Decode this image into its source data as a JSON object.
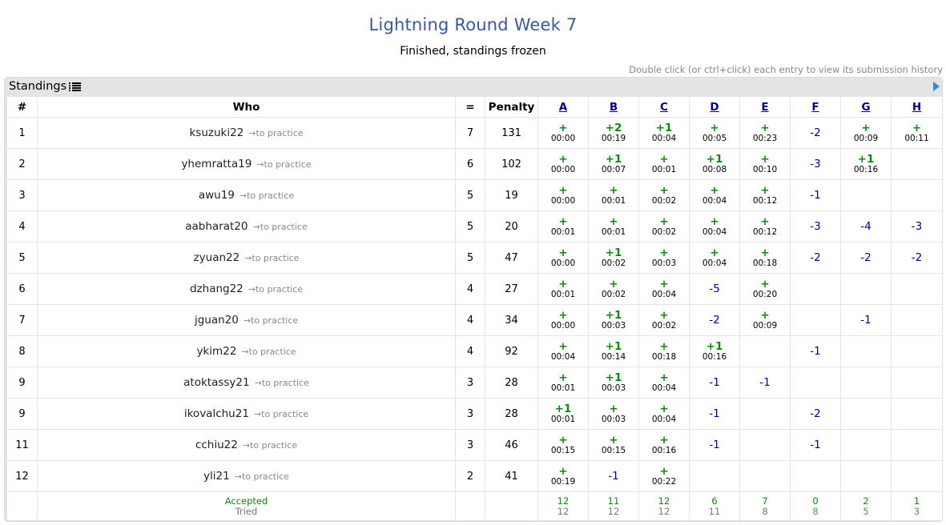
{
  "contest": {
    "title": "Lightning Round Week 7",
    "status": "Finished, standings frozen",
    "hint": "Double click (or ctrl+click) each entry to view its submission history"
  },
  "panel": {
    "title": "Standings"
  },
  "colors": {
    "accepted": "#0a8a0a",
    "rejected": "#00008b",
    "title": "#3b5998",
    "practice": "#888888"
  },
  "columns": {
    "rank": "#",
    "who": "Who",
    "solved": "=",
    "penalty": "Penalty",
    "problems": [
      "A",
      "B",
      "C",
      "D",
      "E",
      "F",
      "G",
      "H"
    ]
  },
  "practice_label": "→to practice",
  "rows": [
    {
      "rank": "1",
      "user": "ksuzuki22",
      "solved": "7",
      "penalty": "131",
      "cells": [
        {
          "v": "+",
          "t": "00:00"
        },
        {
          "v": "+2",
          "t": "00:19"
        },
        {
          "v": "+1",
          "t": "00:04"
        },
        {
          "v": "+",
          "t": "00:05"
        },
        {
          "v": "+",
          "t": "00:23"
        },
        {
          "v": "-2"
        },
        {
          "v": "+",
          "t": "00:09"
        },
        {
          "v": "+",
          "t": "00:11"
        }
      ]
    },
    {
      "rank": "2",
      "user": "yhemratta19",
      "solved": "6",
      "penalty": "102",
      "cells": [
        {
          "v": "+",
          "t": "00:00"
        },
        {
          "v": "+1",
          "t": "00:07"
        },
        {
          "v": "+",
          "t": "00:01"
        },
        {
          "v": "+1",
          "t": "00:08"
        },
        {
          "v": "+",
          "t": "00:10"
        },
        {
          "v": "-3"
        },
        {
          "v": "+1",
          "t": "00:16"
        },
        {}
      ]
    },
    {
      "rank": "3",
      "user": "awu19",
      "solved": "5",
      "penalty": "19",
      "cells": [
        {
          "v": "+",
          "t": "00:00"
        },
        {
          "v": "+",
          "t": "00:01"
        },
        {
          "v": "+",
          "t": "00:02"
        },
        {
          "v": "+",
          "t": "00:04"
        },
        {
          "v": "+",
          "t": "00:12"
        },
        {
          "v": "-1"
        },
        {},
        {}
      ]
    },
    {
      "rank": "4",
      "user": "aabharat20",
      "solved": "5",
      "penalty": "20",
      "cells": [
        {
          "v": "+",
          "t": "00:01"
        },
        {
          "v": "+",
          "t": "00:01"
        },
        {
          "v": "+",
          "t": "00:02"
        },
        {
          "v": "+",
          "t": "00:04"
        },
        {
          "v": "+",
          "t": "00:12"
        },
        {
          "v": "-3"
        },
        {
          "v": "-4"
        },
        {
          "v": "-3"
        }
      ]
    },
    {
      "rank": "5",
      "user": "zyuan22",
      "solved": "5",
      "penalty": "47",
      "cells": [
        {
          "v": "+",
          "t": "00:00"
        },
        {
          "v": "+1",
          "t": "00:02"
        },
        {
          "v": "+",
          "t": "00:03"
        },
        {
          "v": "+",
          "t": "00:04"
        },
        {
          "v": "+",
          "t": "00:18"
        },
        {
          "v": "-2"
        },
        {
          "v": "-2"
        },
        {
          "v": "-2"
        }
      ]
    },
    {
      "rank": "6",
      "user": "dzhang22",
      "solved": "4",
      "penalty": "27",
      "cells": [
        {
          "v": "+",
          "t": "00:01"
        },
        {
          "v": "+",
          "t": "00:02"
        },
        {
          "v": "+",
          "t": "00:04"
        },
        {
          "v": "-5"
        },
        {
          "v": "+",
          "t": "00:20"
        },
        {},
        {},
        {}
      ]
    },
    {
      "rank": "7",
      "user": "jguan20",
      "solved": "4",
      "penalty": "34",
      "cells": [
        {
          "v": "+",
          "t": "00:00"
        },
        {
          "v": "+1",
          "t": "00:03"
        },
        {
          "v": "+",
          "t": "00:02"
        },
        {
          "v": "-2"
        },
        {
          "v": "+",
          "t": "00:09"
        },
        {},
        {
          "v": "-1"
        },
        {}
      ]
    },
    {
      "rank": "8",
      "user": "ykim22",
      "solved": "4",
      "penalty": "92",
      "cells": [
        {
          "v": "+",
          "t": "00:04"
        },
        {
          "v": "+1",
          "t": "00:14"
        },
        {
          "v": "+",
          "t": "00:18"
        },
        {
          "v": "+1",
          "t": "00:16"
        },
        {},
        {
          "v": "-1"
        },
        {},
        {}
      ]
    },
    {
      "rank": "9",
      "user": "atoktassy21",
      "solved": "3",
      "penalty": "28",
      "cells": [
        {
          "v": "+",
          "t": "00:01"
        },
        {
          "v": "+1",
          "t": "00:03"
        },
        {
          "v": "+",
          "t": "00:04"
        },
        {
          "v": "-1"
        },
        {
          "v": "-1"
        },
        {},
        {},
        {}
      ]
    },
    {
      "rank": "9",
      "user": "ikovalchu21",
      "solved": "3",
      "penalty": "28",
      "cells": [
        {
          "v": "+1",
          "t": "00:01"
        },
        {
          "v": "+",
          "t": "00:03"
        },
        {
          "v": "+",
          "t": "00:04"
        },
        {
          "v": "-1"
        },
        {},
        {
          "v": "-2"
        },
        {},
        {}
      ]
    },
    {
      "rank": "11",
      "user": "cchiu22",
      "solved": "3",
      "penalty": "46",
      "cells": [
        {
          "v": "+",
          "t": "00:15"
        },
        {
          "v": "+",
          "t": "00:15"
        },
        {
          "v": "+",
          "t": "00:16"
        },
        {
          "v": "-1"
        },
        {},
        {
          "v": "-1"
        },
        {},
        {}
      ]
    },
    {
      "rank": "12",
      "user": "yli21",
      "solved": "2",
      "penalty": "41",
      "cells": [
        {
          "v": "+",
          "t": "00:19"
        },
        {
          "v": "-1"
        },
        {
          "v": "+",
          "t": "00:22"
        },
        {},
        {},
        {},
        {},
        {}
      ]
    }
  ],
  "footer": {
    "accepted_label": "Accepted",
    "tried_label": "Tried",
    "accepted": [
      "12",
      "11",
      "12",
      "6",
      "7",
      "0",
      "2",
      "1"
    ],
    "tried": [
      "12",
      "12",
      "12",
      "11",
      "8",
      "8",
      "5",
      "3"
    ]
  }
}
